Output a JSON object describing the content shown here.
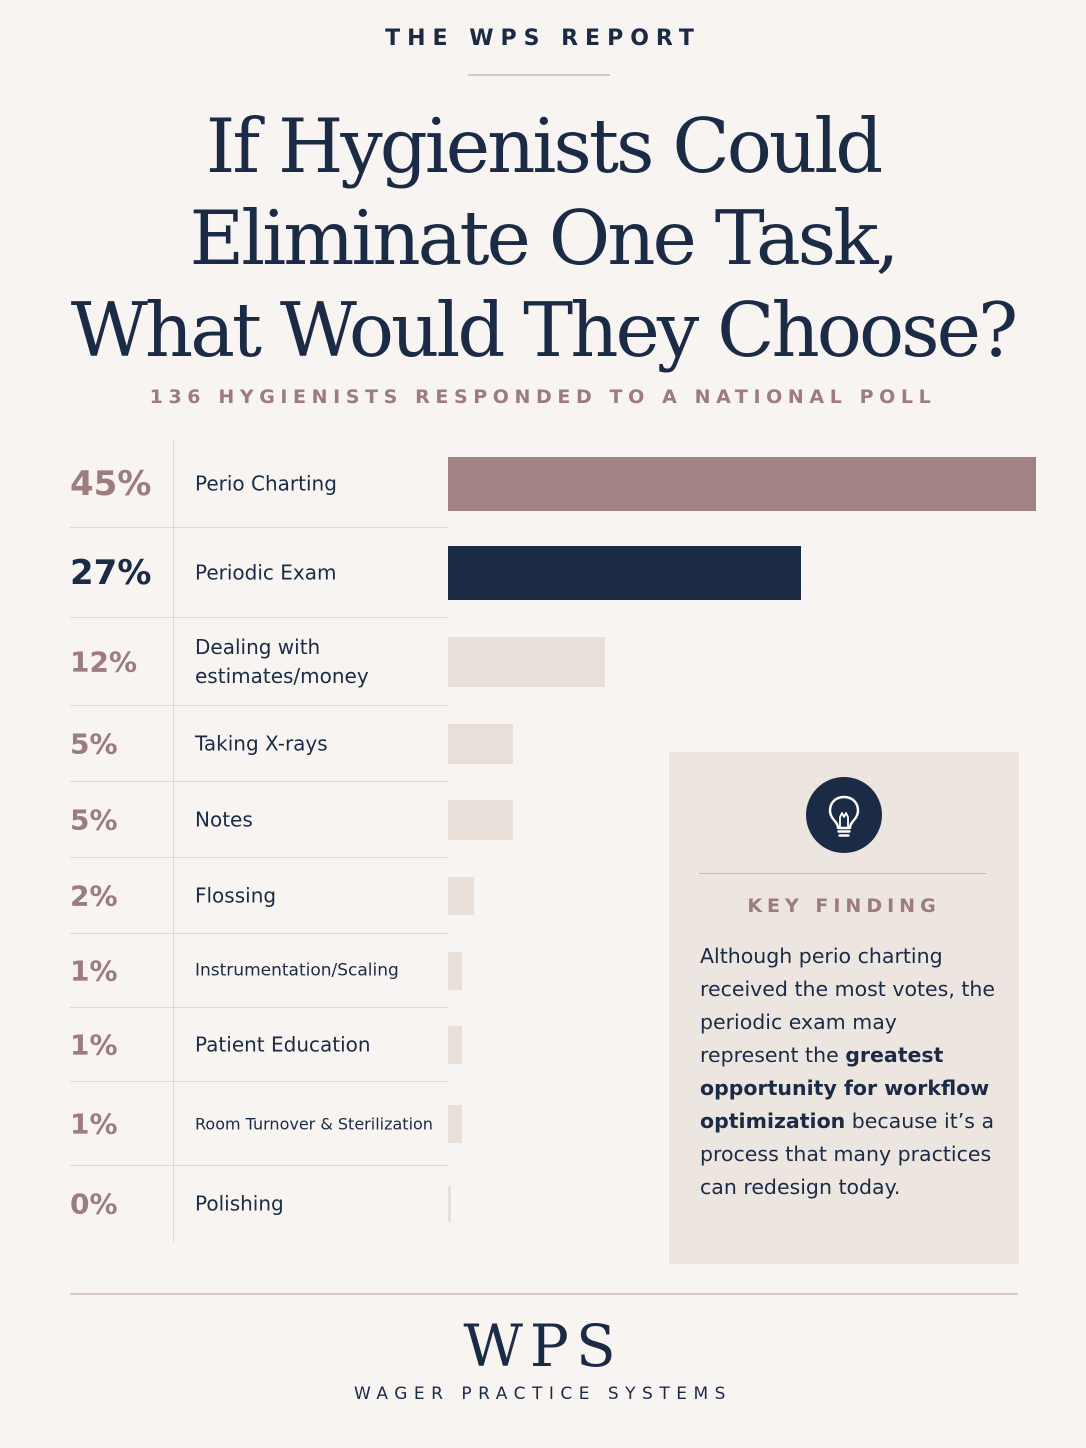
{
  "header": {
    "eyebrow": "THE WPS REPORT",
    "title_lines": [
      "If Hygienists Could",
      "Eliminate One Task,",
      "What Would They Choose?"
    ],
    "subtitle": "136 HYGIENISTS RESPONDED TO A NATIONAL POLL"
  },
  "chart_data": {
    "type": "bar",
    "orientation": "horizontal",
    "categories": [
      "Perio Charting",
      "Periodic Exam",
      "Dealing with estimates/money",
      "Taking X-rays",
      "Notes",
      "Flossing",
      "Instrumentation/Scaling",
      "Patient Education",
      "Room Turnover & Sterilization",
      "Polishing"
    ],
    "value_labels": [
      "45%",
      "27%",
      "12%",
      "5%",
      "5%",
      "2%",
      "1%",
      "1%",
      "1%",
      "0%"
    ],
    "values": [
      45,
      27,
      12,
      5,
      5,
      2,
      1,
      1,
      1,
      0
    ],
    "bar_colors": [
      "#a18383",
      "#1b2a45",
      "#e8dfd8",
      "#e8dfd8",
      "#e8dfd8",
      "#e8dfd8",
      "#e8dfd8",
      "#e8dfd8",
      "#e8dfd8",
      "#e8dfd8"
    ],
    "xlim": [
      0,
      45
    ],
    "grid": false
  },
  "key_finding": {
    "icon": "lightbulb-icon",
    "heading": "KEY FINDING",
    "text_before": "Although perio charting received the most votes, the periodic exam may represent the ",
    "text_bold": "greatest opportunity for workflow optimization",
    "text_after": " because it’s a process that many practices can redesign today."
  },
  "footer": {
    "logo": "WPS",
    "tagline": "WAGER PRACTICE SYSTEMS"
  },
  "colors": {
    "background": "#f7f4f1",
    "navy": "#1b2a45",
    "mauve": "#9c7c7d",
    "muted_bar": "#e8dfd8",
    "panel": "#ede5e0"
  }
}
